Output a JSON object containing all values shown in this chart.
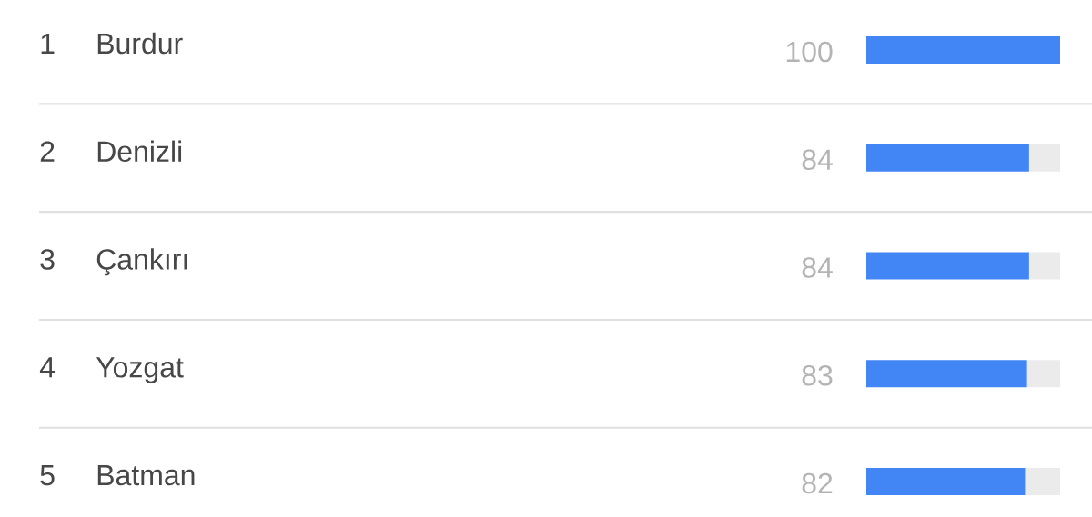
{
  "chart_data": {
    "type": "bar",
    "orientation": "horizontal",
    "stacked": true,
    "categories": [
      "Burdur",
      "Denizli",
      "Çankırı",
      "Yozgat",
      "Batman"
    ],
    "series": [
      {
        "color": "#4285f4",
        "values": [
          100,
          84,
          84,
          83,
          82
        ],
        "value_labels": [
          "100",
          "84",
          "84",
          "83",
          "82"
        ]
      },
      {
        "color": "#ebebeb",
        "values": [
          null,
          16,
          16,
          17,
          18
        ]
      }
    ],
    "xlim": [
      0,
      100
    ],
    "grid": "y",
    "annotations": [
      "1",
      "2",
      "3",
      "4",
      "5"
    ]
  }
}
